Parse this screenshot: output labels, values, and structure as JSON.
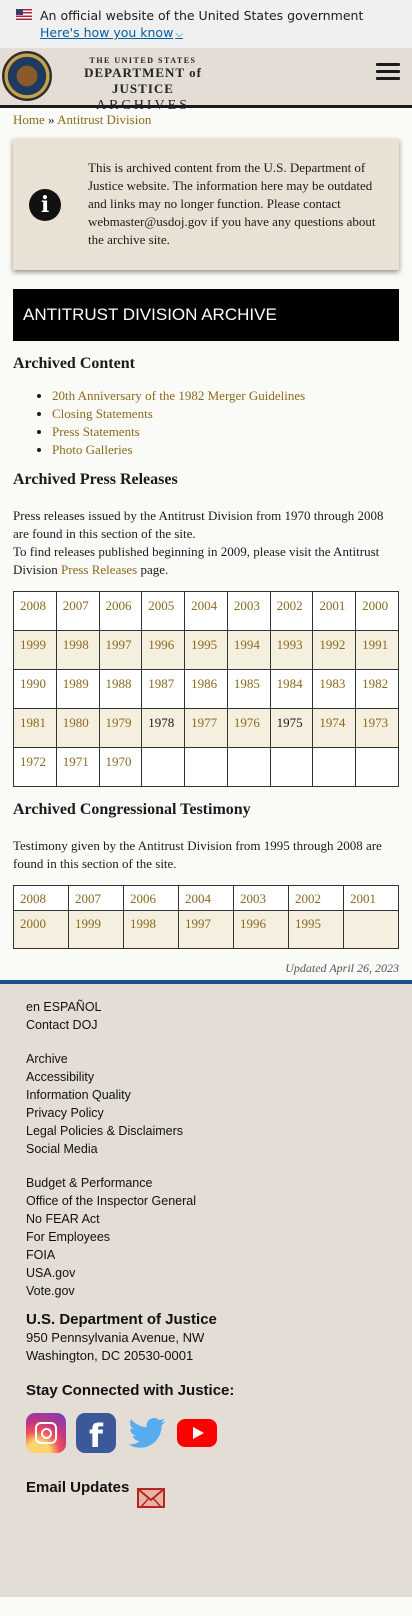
{
  "gov_banner": {
    "official_text": "An official website of the United States government",
    "how_link": "Here's how you know"
  },
  "header": {
    "logo_line1": "THE UNITED STATES",
    "logo_line2": "DEPARTMENT of JUSTICE",
    "logo_line3": "ARCHIVES",
    "menu_icon": "hamburger-menu-icon"
  },
  "breadcrumb": {
    "home": "Home",
    "separator": " » ",
    "current": "Antitrust Division"
  },
  "notice": {
    "icon": "info-icon",
    "text": "This is archived content from the U.S. Department of Justice website. The information here may be outdated and links may no longer function. Please contact webmaster@usdoj.gov if you have any questions about the archive site."
  },
  "page_title": "ANTITRUST DIVISION ARCHIVE",
  "archived_content": {
    "heading": "Archived Content",
    "links": [
      "20th Anniversary of the 1982 Merger Guidelines",
      "Closing Statements",
      "Press Statements",
      "Photo Galleries"
    ]
  },
  "press_releases": {
    "heading": "Archived Press Releases",
    "para1": "Press releases issued by the Antitrust Division from 1970 through 2008 are found in this section of the site.",
    "para2_prefix": "To find releases published beginning in 2009, please visit the Antitrust Division ",
    "para2_link": "Press Releases",
    "para2_suffix": " page.",
    "rows": [
      [
        "2008",
        "2007",
        "2006",
        "2005",
        "2004",
        "2003",
        "2002",
        "2001",
        "2000"
      ],
      [
        "1999",
        "1998",
        "1997",
        "1996",
        "1995",
        "1994",
        "1993",
        "1992",
        "1991"
      ],
      [
        "1990",
        "1989",
        "1988",
        "1987",
        "1986",
        "1985",
        "1984",
        "1983",
        "1982"
      ],
      [
        "1981",
        "1980",
        "1979",
        "1978",
        "1977",
        "1976",
        "1975",
        "1974",
        "1973"
      ],
      [
        "1972",
        "1971",
        "1970",
        "",
        "",
        "",
        "",
        "",
        ""
      ]
    ]
  },
  "testimony": {
    "heading": "Archived Congressional Testimony",
    "para": "Testimony given by the Antitrust Division from 1995 through 2008 are found in this section of the site.",
    "rows": [
      [
        "2008",
        "2007",
        "2006",
        "2004",
        "2003",
        "2002",
        "2001"
      ],
      [
        "2000",
        "1999",
        "1998",
        "1997",
        "1996",
        "1995",
        ""
      ]
    ]
  },
  "updated": "Updated April 26, 2023",
  "footer": {
    "group1": [
      "en ESPAÑOL",
      "Contact DOJ"
    ],
    "group2": [
      "Archive",
      "Accessibility",
      "Information Quality",
      "Privacy Policy",
      "Legal Policies & Disclaimers",
      "Social Media"
    ],
    "group3": [
      "Budget & Performance",
      "Office of the Inspector General",
      "No FEAR Act",
      "For Employees",
      "FOIA",
      "USA.gov",
      "Vote.gov"
    ],
    "org_name": "U.S. Department of Justice",
    "address1": "950 Pennsylvania Avenue, NW",
    "address2": "Washington, DC 20530-0001",
    "stay_connected": "Stay Connected with Justice:",
    "email_updates": "Email Updates",
    "social_icons": [
      "instagram-icon",
      "facebook-icon",
      "twitter-icon",
      "youtube-icon"
    ]
  },
  "colors": {
    "link": "#8b6a1f",
    "banner_bg": "#000000",
    "footer_rule": "#1b4f8a",
    "footer_bg": "#e3ddd6"
  }
}
